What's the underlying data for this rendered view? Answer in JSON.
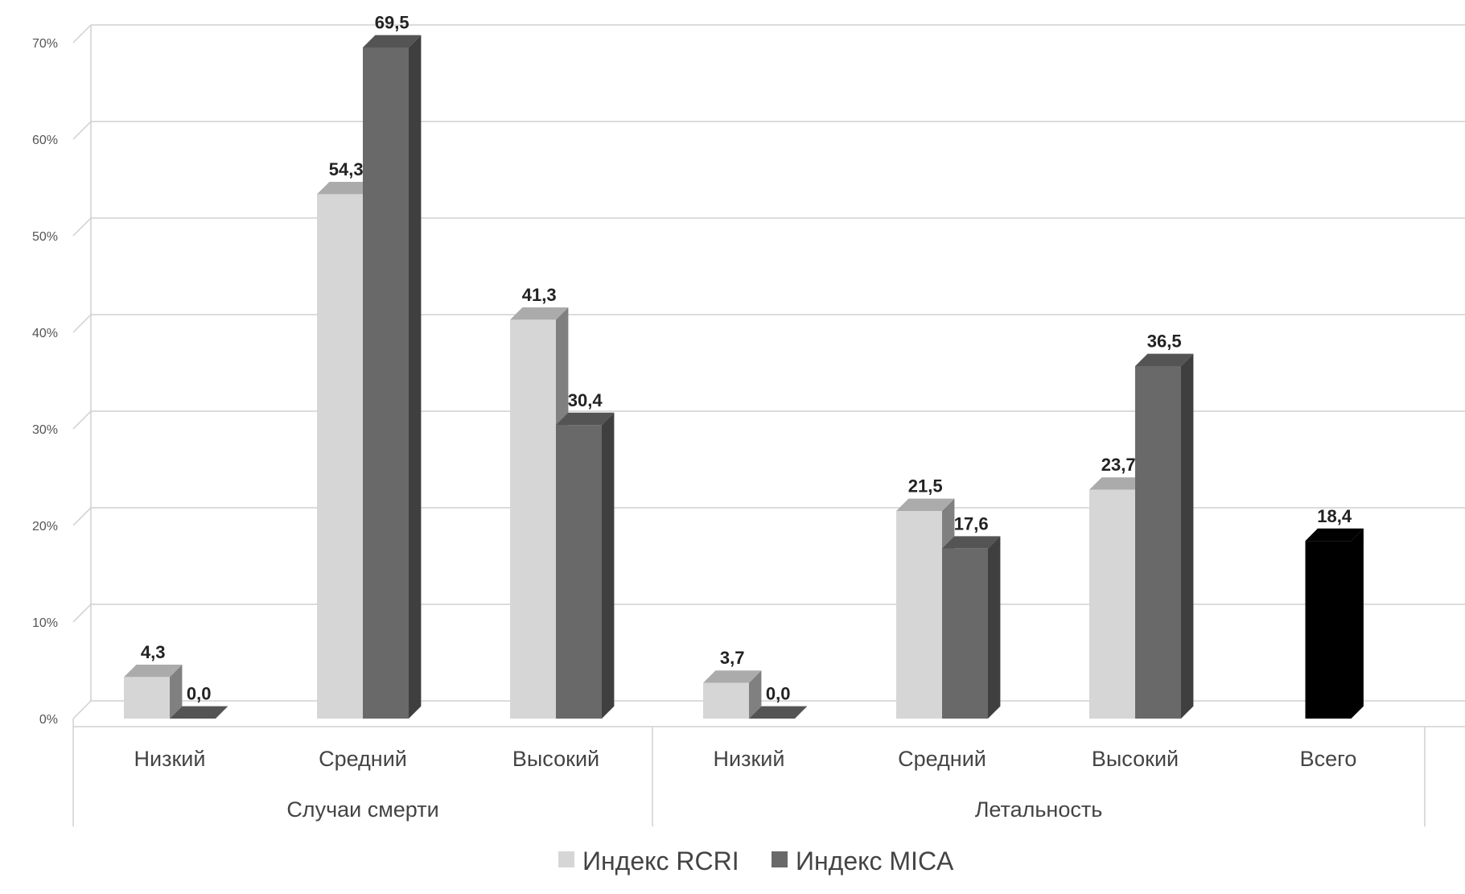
{
  "chart_data": {
    "type": "bar",
    "title": "",
    "xlabel": "",
    "ylabel": "",
    "ylim": [
      0,
      70
    ],
    "y_ticks": [
      "0%",
      "10%",
      "20%",
      "30%",
      "40%",
      "50%",
      "60%",
      "70%"
    ],
    "grid": true,
    "three_d": true,
    "legend_position": "bottom",
    "groups": [
      {
        "label": "Случаи смерти",
        "categories": [
          "Низкий",
          "Средний",
          "Высокий"
        ]
      },
      {
        "label": "Летальность",
        "categories": [
          "Низкий",
          "Средний",
          "Высокий",
          "Всего"
        ]
      }
    ],
    "categories": [
      "Низкий",
      "Средний",
      "Высокий",
      "Низкий",
      "Средний",
      "Высокий",
      "Всего"
    ],
    "series": [
      {
        "name": "Индекс RCRI",
        "color": "#d6d6d6",
        "values": [
          4.3,
          54.3,
          41.3,
          3.7,
          21.5,
          23.7,
          null
        ],
        "labels": [
          "4,3",
          "54,3",
          "41,3",
          "3,7",
          "21,5",
          "23,7",
          ""
        ]
      },
      {
        "name": "Индекс MICA",
        "color": "#696969",
        "values": [
          0.0,
          69.5,
          30.4,
          0.0,
          17.6,
          36.5,
          null
        ],
        "labels": [
          "0,0",
          "69,5",
          "30,4",
          "0,0",
          "17,6",
          "36,5",
          ""
        ]
      },
      {
        "name": "",
        "color": "#000000",
        "values": [
          null,
          null,
          null,
          null,
          null,
          null,
          18.4
        ],
        "labels": [
          "",
          "",
          "",
          "",
          "",
          "",
          "18,4"
        ]
      }
    ]
  }
}
